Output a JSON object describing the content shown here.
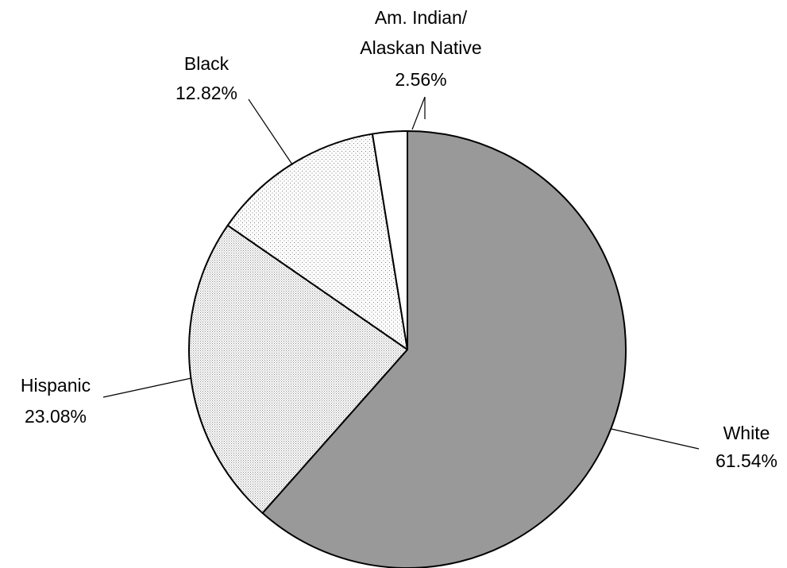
{
  "chart_data": {
    "type": "pie",
    "title": "",
    "start_angle_deg": 0,
    "direction": "clockwise",
    "slices": [
      {
        "label_lines": [
          "White"
        ],
        "value_label": "61.54%",
        "value": 61.54,
        "fill": "#999999",
        "pattern": "solid"
      },
      {
        "label_lines": [
          "Hispanic"
        ],
        "value_label": "23.08%",
        "value": 23.08,
        "fill": "#ffffff",
        "pattern": "dense-dots"
      },
      {
        "label_lines": [
          "Black"
        ],
        "value_label": "12.82%",
        "value": 12.82,
        "fill": "#ffffff",
        "pattern": "sparse-dots"
      },
      {
        "label_lines": [
          "Am. Indian/",
          "Alaskan Native"
        ],
        "value_label": "2.56%",
        "value": 2.56,
        "fill": "#ffffff",
        "pattern": "solid"
      }
    ]
  }
}
